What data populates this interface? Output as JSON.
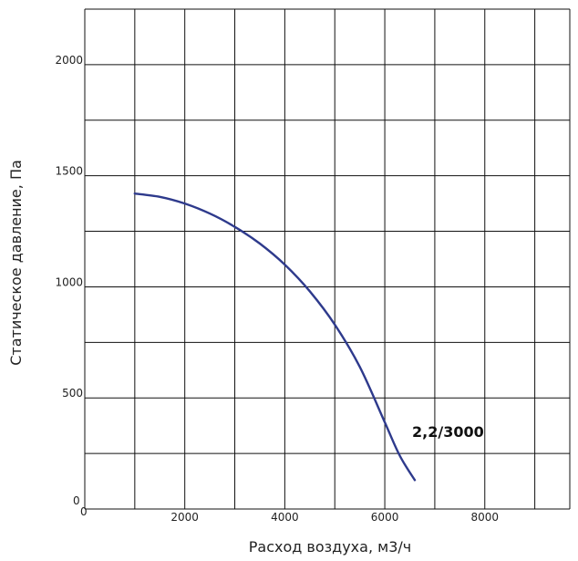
{
  "chart_data": {
    "type": "line",
    "title": "",
    "xlabel": "Расход воздуха, м3/ч",
    "ylabel": "Статическое давление, Па",
    "xlim": [
      0,
      9700
    ],
    "ylim": [
      0,
      2250
    ],
    "x_ticks": [
      2000,
      4000,
      6000,
      8000
    ],
    "y_ticks": [
      500,
      1000,
      1500,
      2000
    ],
    "x_grid": [
      0,
      1000,
      2000,
      3000,
      4000,
      5000,
      6000,
      7000,
      8000,
      9000,
      9700
    ],
    "y_grid": [
      0,
      250,
      500,
      750,
      1000,
      1250,
      1500,
      1750,
      2000,
      2250
    ],
    "origin_x_label": "0",
    "origin_y_label": "0",
    "grid": true,
    "series": [
      {
        "name": "2,2/3000",
        "color": "#2e3a8c",
        "x": [
          1000,
          1500,
          2000,
          2500,
          3000,
          3500,
          4000,
          4500,
          5000,
          5500,
          6000,
          6300,
          6600
        ],
        "y": [
          1420,
          1405,
          1375,
          1330,
          1270,
          1195,
          1100,
          980,
          830,
          640,
          390,
          240,
          130
        ]
      }
    ]
  }
}
